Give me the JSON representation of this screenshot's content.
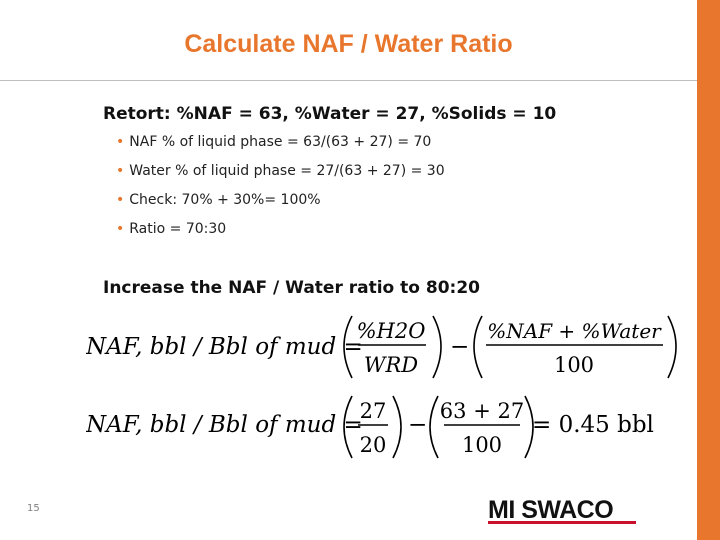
{
  "slide": {
    "title": "Calculate NAF / Water Ratio",
    "retort_line": "Retort: %NAF = 63, %Water = 27, %Solids = 10",
    "bullets": [
      "NAF % of liquid phase = 63/(63 + 27) = 70",
      "Water % of liquid phase = 27/(63 + 27) = 30",
      "Check: 70% + 30%= 100%",
      "Ratio = 70:30"
    ],
    "increase_line": "Increase the NAF / Water ratio to 80:20",
    "page_number": "15"
  },
  "equations": {
    "formula": {
      "lhs": "NAF, bbl / Bbl of mud =",
      "frac1_num": "%H2O",
      "frac1_den": "WRD",
      "minus": "−",
      "frac2_num": "%NAF + %Water",
      "frac2_den": "100"
    },
    "calculation": {
      "lhs": "NAF, bbl / Bbl of mud =",
      "frac1_num": "27",
      "frac1_den": "20",
      "minus": "−",
      "frac2_num": "63 + 27",
      "frac2_den": "100",
      "result": "= 0.45 bbl"
    }
  },
  "logo": {
    "text": "MI SWACO"
  },
  "colors": {
    "accent": "#e8762c",
    "logo_red": "#c8102e"
  }
}
